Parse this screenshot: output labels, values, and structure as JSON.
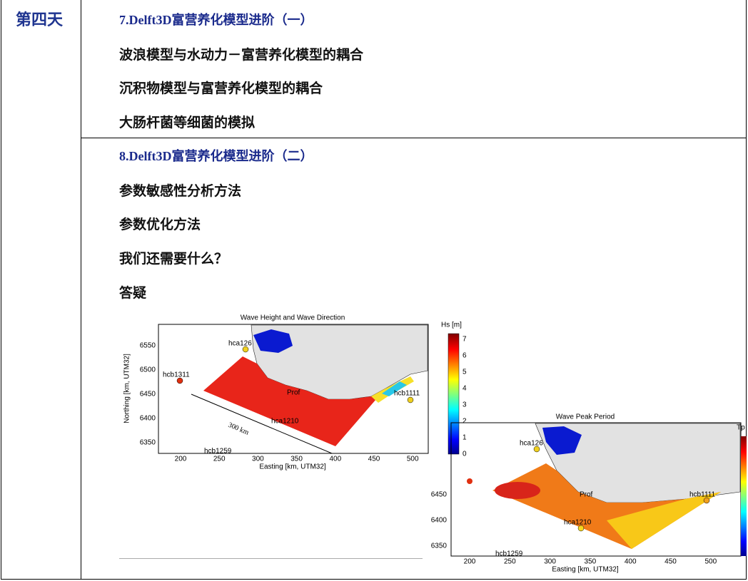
{
  "day": "第四天",
  "sections": [
    {
      "title": "7.Delft3D富营养化模型进阶（一）",
      "items": [
        "波浪模型与水动力－富营养化模型的耦合",
        "沉积物模型与富营养化模型的耦合",
        "大肠杆菌等细菌的模拟"
      ]
    },
    {
      "title": "8.Delft3D富营养化模型进阶（二）",
      "items": [
        "参数敏感性分析方法",
        "参数优化方法",
        "我们还需要什么？",
        "答疑"
      ]
    }
  ],
  "figures": [
    {
      "title": "Wave Height and Wave Direction",
      "xlabel": "Easting [km, UTM32]",
      "ylabel": "Northing [km, UTM32]",
      "xticks": [
        "200",
        "250",
        "300",
        "350",
        "400",
        "450",
        "500"
      ],
      "yticks": [
        "6550",
        "6500",
        "6450",
        "6400",
        "6350"
      ],
      "colorbar_label": "Hs [m]",
      "colorbar_ticks": [
        "7",
        "6",
        "5",
        "4",
        "3",
        "2",
        "1",
        "0"
      ],
      "labels": [
        "hcb1311",
        "hca126",
        "Prof",
        "hcb1111",
        "hca1210",
        "hcb1259",
        "300 km"
      ]
    },
    {
      "title": "Wave Peak Period",
      "xlabel": "Easting [km, UTM32]",
      "xticks": [
        "200",
        "250",
        "300",
        "350",
        "400",
        "450",
        "500"
      ],
      "yticks": [
        "6450",
        "6400",
        "6350"
      ],
      "colorbar_label": "Tp",
      "labels": [
        "hca126",
        "Prof",
        "hcb1111",
        "hca1210",
        "hcb1259"
      ]
    }
  ]
}
